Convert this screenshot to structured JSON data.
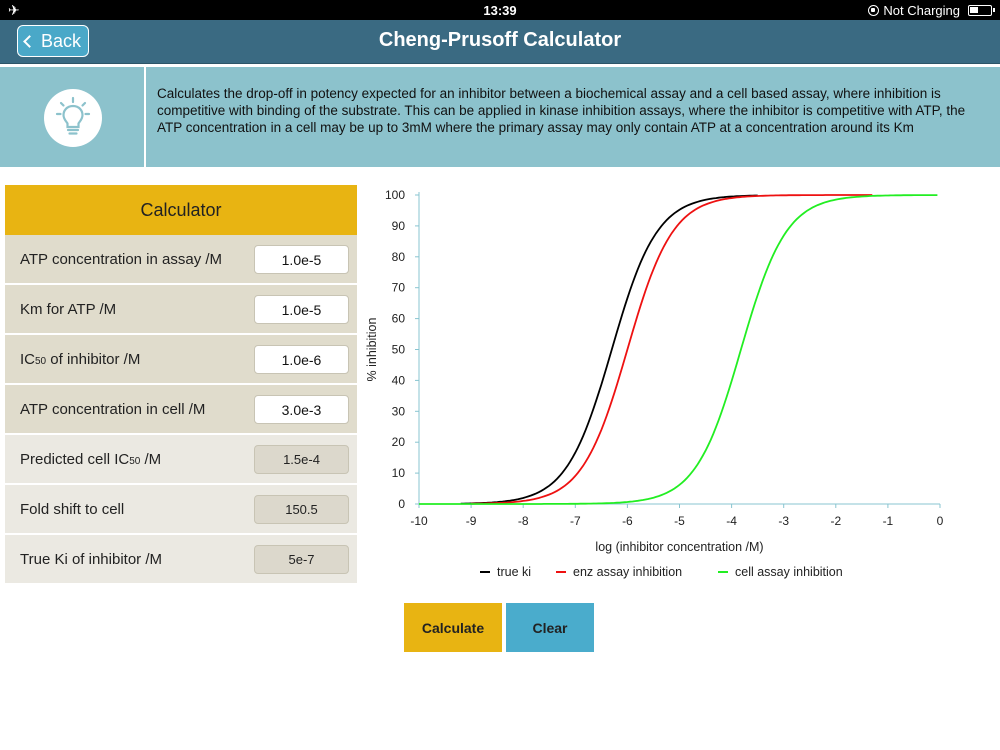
{
  "status_bar": {
    "time": "13:39",
    "charging": "Not Charging"
  },
  "nav": {
    "back_label": "Back",
    "title": "Cheng-Prusoff Calculator"
  },
  "info": {
    "text": "Calculates the drop-off in potency expected for an inhibitor between a biochemical assay and a cell based assay, where inhibition is competitive with binding of the substrate. This can be applied in kinase inhibition assays, where the inhibitor is competitive with ATP, the ATP concentration in a cell may be up to 3mM where the primary assay may only contain ATP at a concentration around its Km"
  },
  "calculator": {
    "header": "Calculator",
    "inputs": [
      {
        "label": "ATP concentration in assay /M",
        "value": "1.0e-5"
      },
      {
        "label": "Km for ATP /M",
        "value": "1.0e-5"
      },
      {
        "label_pre": "IC",
        "label_sub": "50",
        "label_post": " of inhibitor /M",
        "value": "1.0e-6"
      },
      {
        "label": "ATP concentration in cell /M",
        "value": "3.0e-3"
      }
    ],
    "outputs": [
      {
        "label_pre": "Predicted cell IC",
        "label_sub": "50",
        "label_post": " /M",
        "value": "1.5e-4"
      },
      {
        "label": "Fold shift to cell",
        "value": "150.5"
      },
      {
        "label": "True Ki of inhibitor /M",
        "value": "5e-7"
      }
    ]
  },
  "buttons": {
    "calculate": "Calculate",
    "clear": "Clear"
  },
  "colors": {
    "accent": "#e8b412",
    "nav": "#3a6a82",
    "info": "#8cc2cc",
    "clear": "#4aaccc"
  },
  "chart_data": {
    "type": "line",
    "xlabel": "log (inhibitor concentration /M)",
    "ylabel": "% inhibition",
    "xlim": [
      -10,
      0
    ],
    "ylim": [
      0,
      100
    ],
    "xticks": [
      -10,
      -9,
      -8,
      -7,
      -6,
      -5,
      -4,
      -3,
      -2,
      -1,
      0
    ],
    "yticks": [
      0,
      10,
      20,
      30,
      40,
      50,
      60,
      70,
      80,
      90,
      100
    ],
    "grid": false,
    "legend": "bottom",
    "series": [
      {
        "name": "true ki",
        "color": "#000000",
        "logIC50": -6.3,
        "x_range": [
          -9.2,
          -3.5
        ]
      },
      {
        "name": "enz assay inhibition",
        "color": "#ee1111",
        "logIC50": -6.0,
        "x_range": [
          -9.0,
          -1.3
        ]
      },
      {
        "name": "cell assay inhibition",
        "color": "#22ee22",
        "logIC50": -3.82,
        "x_range": [
          -10,
          -0.05
        ]
      }
    ]
  }
}
